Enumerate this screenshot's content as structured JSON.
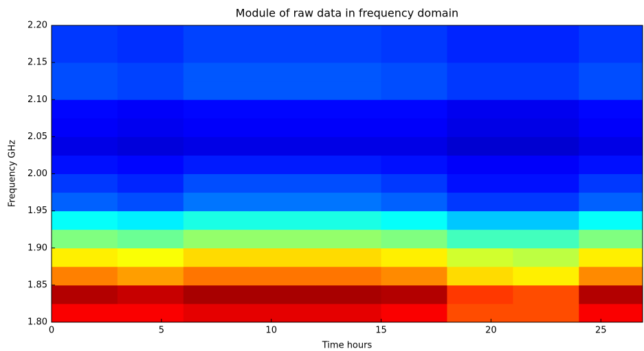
{
  "chart_data": {
    "type": "heatmap",
    "title": "Module of raw data in frequency domain",
    "xlabel": "Time hours",
    "ylabel": "Frequency GHz",
    "xlim": [
      0,
      26.9
    ],
    "ylim": [
      1.8,
      2.2
    ],
    "xticks": [
      0,
      5,
      10,
      15,
      20,
      25
    ],
    "yticks": [
      {
        "value": 1.8,
        "label": "1.80"
      },
      {
        "value": 1.85,
        "label": "1.85"
      },
      {
        "value": 1.9,
        "label": "1.90"
      },
      {
        "value": 1.95,
        "label": "1.95"
      },
      {
        "value": 2.0,
        "label": "2.00"
      },
      {
        "value": 2.05,
        "label": "2.05"
      },
      {
        "value": 2.1,
        "label": "2.10"
      },
      {
        "value": 2.15,
        "label": "2.15"
      },
      {
        "value": 2.2,
        "label": "2.20"
      }
    ],
    "x": [
      0,
      3,
      6,
      9,
      12,
      15,
      18,
      21,
      24,
      26.9
    ],
    "y": [
      1.8,
      1.825,
      1.85,
      1.875,
      1.9,
      1.925,
      1.95,
      1.975,
      2.0,
      2.025,
      2.05,
      2.075,
      2.1,
      2.125,
      2.15,
      2.175,
      2.2
    ],
    "zlim": [
      0,
      1
    ],
    "colormap": "jet",
    "z": [
      [
        0.88,
        0.88,
        0.9,
        0.9,
        0.9,
        0.88,
        0.8,
        0.8,
        0.88
      ],
      [
        0.95,
        0.93,
        0.96,
        0.96,
        0.96,
        0.95,
        0.82,
        0.8,
        0.95
      ],
      [
        0.75,
        0.72,
        0.76,
        0.76,
        0.76,
        0.74,
        0.66,
        0.64,
        0.74
      ],
      [
        0.64,
        0.62,
        0.66,
        0.66,
        0.66,
        0.64,
        0.58,
        0.56,
        0.64
      ],
      [
        0.5,
        0.48,
        0.52,
        0.52,
        0.52,
        0.5,
        0.44,
        0.44,
        0.5
      ],
      [
        0.38,
        0.36,
        0.4,
        0.4,
        0.4,
        0.38,
        0.32,
        0.32,
        0.38
      ],
      [
        0.22,
        0.2,
        0.24,
        0.24,
        0.24,
        0.22,
        0.18,
        0.18,
        0.22
      ],
      [
        0.18,
        0.16,
        0.2,
        0.2,
        0.2,
        0.18,
        0.14,
        0.14,
        0.18
      ],
      [
        0.14,
        0.13,
        0.15,
        0.15,
        0.15,
        0.14,
        0.12,
        0.12,
        0.14
      ],
      [
        0.1,
        0.09,
        0.1,
        0.1,
        0.1,
        0.1,
        0.08,
        0.08,
        0.1
      ],
      [
        0.12,
        0.11,
        0.12,
        0.12,
        0.12,
        0.12,
        0.1,
        0.1,
        0.12
      ],
      [
        0.13,
        0.12,
        0.13,
        0.13,
        0.13,
        0.13,
        0.11,
        0.11,
        0.13
      ],
      [
        0.2,
        0.19,
        0.21,
        0.21,
        0.21,
        0.2,
        0.18,
        0.18,
        0.2
      ],
      [
        0.2,
        0.19,
        0.21,
        0.21,
        0.21,
        0.2,
        0.18,
        0.18,
        0.2
      ],
      [
        0.18,
        0.17,
        0.19,
        0.19,
        0.19,
        0.18,
        0.16,
        0.16,
        0.18
      ],
      [
        0.18,
        0.17,
        0.19,
        0.19,
        0.19,
        0.18,
        0.16,
        0.16,
        0.18
      ]
    ]
  }
}
